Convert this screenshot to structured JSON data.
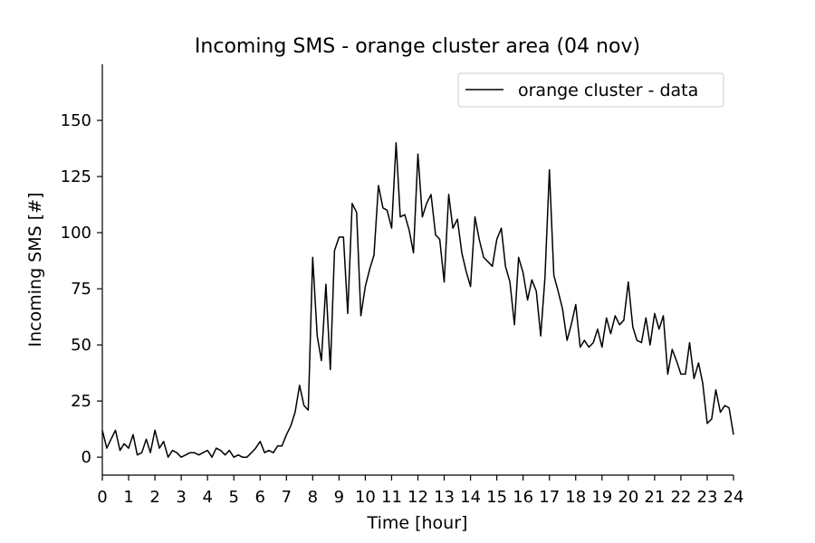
{
  "chart_data": {
    "type": "line",
    "title": "Incoming SMS - orange cluster area (04 nov)",
    "xlabel": "Time [hour]",
    "ylabel": "Incoming SMS [#]",
    "xlim": [
      0,
      24
    ],
    "ylim": [
      -8,
      175
    ],
    "xticks": [
      0,
      1,
      2,
      3,
      4,
      5,
      6,
      7,
      8,
      9,
      10,
      11,
      12,
      13,
      14,
      15,
      16,
      17,
      18,
      19,
      20,
      21,
      22,
      23,
      24
    ],
    "yticks": [
      0,
      25,
      50,
      75,
      100,
      125,
      150
    ],
    "grid": false,
    "legend_position": "top-right",
    "series": [
      {
        "name": "orange cluster - data",
        "color": "#000000",
        "x": [
          0.0,
          0.17,
          0.33,
          0.5,
          0.67,
          0.83,
          1.0,
          1.17,
          1.33,
          1.5,
          1.67,
          1.83,
          2.0,
          2.17,
          2.33,
          2.5,
          2.67,
          2.83,
          3.0,
          3.17,
          3.33,
          3.5,
          3.67,
          3.83,
          4.0,
          4.17,
          4.33,
          4.5,
          4.67,
          4.83,
          5.0,
          5.17,
          5.33,
          5.5,
          5.67,
          5.83,
          6.0,
          6.17,
          6.33,
          6.5,
          6.67,
          6.83,
          7.0,
          7.17,
          7.33,
          7.5,
          7.67,
          7.83,
          8.0,
          8.17,
          8.33,
          8.5,
          8.67,
          8.83,
          9.0,
          9.17,
          9.33,
          9.5,
          9.67,
          9.83,
          10.0,
          10.17,
          10.33,
          10.5,
          10.67,
          10.83,
          11.0,
          11.17,
          11.33,
          11.5,
          11.67,
          11.83,
          12.0,
          12.17,
          12.33,
          12.5,
          12.67,
          12.83,
          13.0,
          13.17,
          13.33,
          13.5,
          13.67,
          13.83,
          14.0,
          14.17,
          14.33,
          14.5,
          14.67,
          14.83,
          15.0,
          15.17,
          15.33,
          15.5,
          15.67,
          15.83,
          16.0,
          16.17,
          16.33,
          16.5,
          16.67,
          16.83,
          17.0,
          17.17,
          17.33,
          17.5,
          17.67,
          17.83,
          18.0,
          18.17,
          18.33,
          18.5,
          18.67,
          18.83,
          19.0,
          19.17,
          19.33,
          19.5,
          19.67,
          19.83,
          20.0,
          20.17,
          20.33,
          20.5,
          20.67,
          20.83,
          21.0,
          21.17,
          21.33,
          21.5,
          21.67,
          21.83,
          22.0,
          22.17,
          22.33,
          22.5,
          22.67,
          22.83,
          23.0,
          23.17,
          23.33,
          23.5,
          23.67,
          23.83,
          24.0
        ],
        "y": [
          12,
          4,
          8,
          12,
          3,
          6,
          4,
          10,
          1,
          2,
          8,
          2,
          12,
          4,
          7,
          0,
          3,
          2,
          0,
          1,
          2,
          2,
          1,
          2,
          3,
          0,
          4,
          3,
          1,
          3,
          0,
          1,
          0,
          0,
          2,
          4,
          7,
          2,
          3,
          2,
          5,
          5,
          10,
          14,
          20,
          32,
          23,
          21,
          89,
          54,
          43,
          77,
          39,
          92,
          98,
          98,
          64,
          113,
          109,
          63,
          76,
          84,
          90,
          121,
          111,
          110,
          102,
          140,
          107,
          108,
          101,
          91,
          135,
          107,
          113,
          117,
          99,
          97,
          78,
          117,
          102,
          106,
          91,
          83,
          76,
          107,
          97,
          89,
          87,
          85,
          97,
          102,
          85,
          78,
          59,
          89,
          82,
          70,
          79,
          74,
          54,
          80,
          128,
          81,
          74,
          66,
          52,
          59,
          68,
          49,
          52,
          49,
          51,
          57,
          49,
          62,
          55,
          63,
          59,
          61,
          78,
          58,
          52,
          51,
          62,
          50,
          64,
          57,
          63,
          37,
          48,
          43,
          37,
          37,
          51,
          35,
          42,
          33,
          15,
          17,
          30,
          20,
          23,
          22,
          10
        ]
      }
    ]
  }
}
